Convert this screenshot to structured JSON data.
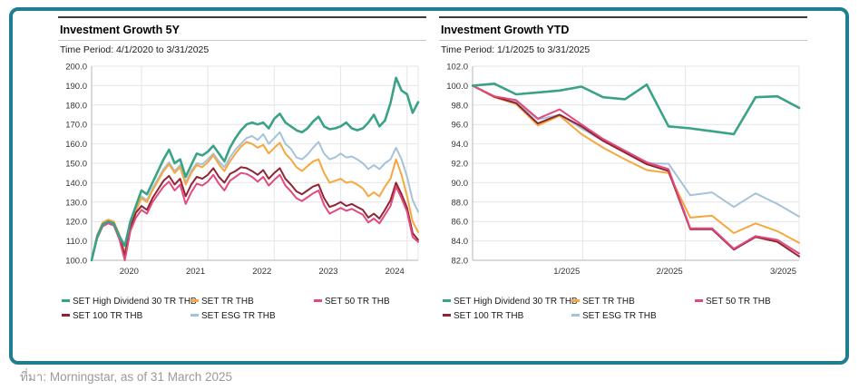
{
  "frame_border_color": "#1f7e8f",
  "source_note": "ที่มา: Morningstar, as of 31 March 2025",
  "legend_items": [
    {
      "label": "SET High Dividend 30 TR THB",
      "color": "#3aa287"
    },
    {
      "label": "SET TR THB",
      "color": "#f6a740"
    },
    {
      "label": "SET 50 TR THB",
      "color": "#e2497e"
    },
    {
      "label": "SET 100 TR THB",
      "color": "#8e2533"
    },
    {
      "label": "SET ESG TR THB",
      "color": "#a5c3d8"
    }
  ],
  "chart_data": [
    {
      "type": "line",
      "title": "Investment Growth 5Y",
      "subtitle": "Time Period: 4/1/2020 to 3/31/2025",
      "ylim": [
        100,
        200
      ],
      "grid": true,
      "legend_position": "bottom",
      "y_ticks": [
        {
          "label": "200.0",
          "value": 200
        },
        {
          "label": "190.0",
          "value": 190
        },
        {
          "label": "180.0",
          "value": 180
        },
        {
          "label": "170.0",
          "value": 170
        },
        {
          "label": "160.0",
          "value": 160
        },
        {
          "label": "150.0",
          "value": 150
        },
        {
          "label": "140.0",
          "value": 140
        },
        {
          "label": "130.0",
          "value": 130
        },
        {
          "label": "120.0",
          "value": 120
        },
        {
          "label": "110.0",
          "value": 110
        },
        {
          "label": "100.0",
          "value": 100
        }
      ],
      "x_labels": [
        "2020",
        "2021",
        "2022",
        "2023",
        "2024"
      ],
      "x_grid": [
        0.1525,
        0.3559,
        0.5593,
        0.7627,
        0.9661
      ],
      "x_range_note": "monthly points, Apr 2020 - Mar 2025",
      "series": [
        {
          "name": "SET High Dividend 30 TR THB",
          "color": "#3aa287",
          "values": [
            100,
            112,
            118.5,
            120,
            119,
            112.5,
            107.5,
            120,
            128,
            136,
            134,
            140,
            146,
            152,
            157,
            150,
            152,
            143,
            149,
            155,
            154,
            156,
            159,
            155,
            151,
            158,
            163,
            167,
            170,
            171,
            170,
            171,
            168,
            173,
            175.5,
            171,
            169,
            167,
            166,
            168,
            171.5,
            174,
            169,
            167.5,
            168,
            169,
            171,
            168,
            167,
            168,
            171,
            175,
            169,
            172,
            181,
            194,
            187.5,
            185.5,
            176,
            181.5
          ]
        },
        {
          "name": "SET TR THB",
          "color": "#f6a740",
          "values": [
            100,
            113,
            119.5,
            121,
            120,
            113.5,
            103.5,
            119,
            125.5,
            132,
            130,
            136,
            141,
            146,
            149.5,
            145,
            148,
            139,
            145,
            149,
            148,
            150.5,
            154,
            149.5,
            146,
            151,
            155,
            158.5,
            161,
            160,
            158,
            159.5,
            155,
            158,
            160.5,
            155,
            152,
            148,
            146,
            148.5,
            151,
            152,
            145,
            140,
            141,
            142,
            140,
            140.5,
            139,
            137,
            133,
            135,
            133,
            138,
            142,
            152,
            144,
            133,
            120,
            114.5
          ]
        },
        {
          "name": "SET 50 TR THB",
          "color": "#e2497e",
          "values": [
            100,
            111.5,
            117.5,
            119,
            118,
            111,
            100,
            115,
            122,
            126,
            124,
            130,
            134,
            138,
            140.5,
            136,
            139,
            129,
            135,
            139.5,
            138.5,
            140.5,
            144,
            139.5,
            136,
            141,
            143,
            145,
            144.5,
            143,
            140.5,
            143,
            138.5,
            141.5,
            144,
            138.5,
            135.5,
            132,
            130.5,
            132.5,
            134.5,
            136,
            128.5,
            124,
            125.5,
            127,
            125.5,
            126.5,
            125,
            123.5,
            119.5,
            121.5,
            119,
            123.5,
            128,
            138,
            132,
            125,
            112,
            109.5
          ]
        },
        {
          "name": "SET 100 TR THB",
          "color": "#8e2533",
          "values": [
            100,
            112.5,
            118.5,
            120,
            119,
            112.5,
            102.5,
            117,
            124.5,
            128,
            126,
            132,
            136.5,
            141,
            143.5,
            139,
            142,
            133,
            139,
            143,
            142,
            144,
            147.5,
            143,
            140,
            144.5,
            146,
            148,
            147.5,
            146,
            144,
            146.5,
            142,
            145,
            147.5,
            142,
            139,
            135.5,
            134,
            136,
            138,
            139,
            132,
            127.5,
            128.5,
            130,
            128,
            129,
            127.5,
            126,
            122,
            124,
            121.5,
            126,
            131,
            140,
            134,
            127,
            114,
            110.5
          ]
        },
        {
          "name": "SET ESG TR THB",
          "color": "#a5c3d8",
          "values": [
            100,
            111,
            117.5,
            119.5,
            118.5,
            112,
            104,
            118,
            126,
            133,
            131,
            137,
            142,
            147,
            150.5,
            146,
            149,
            140,
            146,
            150,
            149.5,
            152,
            155,
            151,
            148,
            153,
            157,
            160,
            163,
            164,
            162,
            165,
            160,
            163,
            166,
            160,
            157.5,
            153,
            152,
            154.5,
            158,
            161,
            155,
            152,
            153,
            155,
            153,
            153.5,
            152,
            150,
            147,
            149,
            147,
            150,
            152,
            158,
            152,
            143,
            131,
            125
          ]
        }
      ]
    },
    {
      "type": "line",
      "title": "Investment Growth YTD",
      "subtitle": "Time Period: 1/1/2025 to 3/31/2025",
      "ylim": [
        82,
        102
      ],
      "grid": true,
      "legend_position": "bottom",
      "y_ticks": [
        {
          "label": "102.0",
          "value": 102
        },
        {
          "label": "100.0",
          "value": 100
        },
        {
          "label": "98.0",
          "value": 98
        },
        {
          "label": "96.0",
          "value": 96
        },
        {
          "label": "94.0",
          "value": 94
        },
        {
          "label": "92.0",
          "value": 92
        },
        {
          "label": "90.0",
          "value": 90
        },
        {
          "label": "88.0",
          "value": 88
        },
        {
          "label": "86.0",
          "value": 86
        },
        {
          "label": "84.0",
          "value": 84
        },
        {
          "label": "82.0",
          "value": 82
        }
      ],
      "x_labels": [
        "1/2025",
        "2/2025",
        "3/2025"
      ],
      "x_grid": [
        0.337,
        0.652,
        1.0
      ],
      "x_range_note": "weekly points, 1/1/2025 - 3/31/2025",
      "series": [
        {
          "name": "SET High Dividend 30 TR THB",
          "color": "#3aa287",
          "values": [
            100,
            100.2,
            99.1,
            99.3,
            99.5,
            99.9,
            98.8,
            98.6,
            100.1,
            95.8,
            95.6,
            95.3,
            95.0,
            98.8,
            98.9,
            97.7
          ]
        },
        {
          "name": "SET TR THB",
          "color": "#f6a740",
          "values": [
            100,
            98.8,
            98.1,
            95.9,
            96.9,
            95.0,
            93.6,
            92.4,
            91.3,
            91.0,
            86.4,
            86.6,
            84.8,
            85.8,
            85.0,
            83.8
          ]
        },
        {
          "name": "SET 50 TR THB",
          "color": "#e2497e",
          "values": [
            100,
            98.9,
            98.5,
            96.6,
            97.55,
            96.0,
            94.5,
            93.3,
            92.1,
            91.4,
            85.3,
            85.3,
            83.2,
            84.5,
            84.1,
            82.7
          ]
        },
        {
          "name": "SET 100 TR THB",
          "color": "#8e2533",
          "values": [
            100,
            98.85,
            98.2,
            96.1,
            97.0,
            95.8,
            94.3,
            93.1,
            91.9,
            91.2,
            85.2,
            85.2,
            83.1,
            84.4,
            83.9,
            82.4
          ]
        },
        {
          "name": "SET ESG TR THB",
          "color": "#a5c3d8",
          "values": [
            100,
            98.9,
            98.3,
            96.5,
            97.0,
            95.6,
            94.3,
            93.2,
            92.0,
            91.95,
            88.7,
            89.0,
            87.5,
            88.9,
            87.8,
            86.5
          ]
        }
      ]
    }
  ]
}
